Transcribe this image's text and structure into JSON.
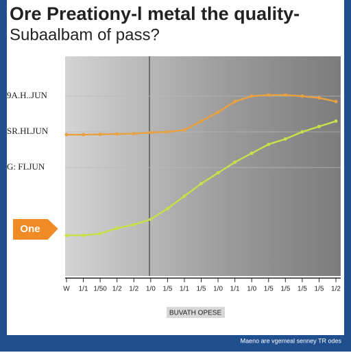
{
  "chart_data": {
    "type": "line",
    "title": "Ore Preationy-l metal the quality-",
    "subtitle": "Subaalbam of pass?",
    "annotation": "One",
    "x_label": "BUVATH OPESE",
    "footer": "Maeno are vgemeal senney TR odes",
    "categories": [
      "W",
      "1/1",
      "1/50",
      "1/2",
      "1/2",
      "1/0",
      "1/5",
      "1/1",
      "1/5",
      "1/0",
      "1/1",
      "1/0",
      "1/5",
      "1/5",
      "1/5",
      "1/5",
      "1/2"
    ],
    "series": [
      {
        "color": "#e8a040",
        "values": [
          3.92,
          3.92,
          3.93,
          3.94,
          3.95,
          3.98,
          4.0,
          4.05,
          4.3,
          4.55,
          4.85,
          5.0,
          5.03,
          5.03,
          5.0,
          4.95,
          4.85
        ]
      },
      {
        "color": "#c6e04a",
        "values": [
          1.1,
          1.1,
          1.15,
          1.3,
          1.4,
          1.55,
          1.85,
          2.2,
          2.55,
          2.85,
          3.15,
          3.4,
          3.65,
          3.8,
          4.0,
          4.15,
          4.3
        ]
      }
    ],
    "ylim": [
      0,
      6
    ],
    "yticks": [
      {
        "value": 5,
        "label": "9A.H..JUN"
      },
      {
        "value": 4,
        "label": "SR.HLJUN"
      },
      {
        "value": 3,
        "label": "G: FLJUN"
      }
    ],
    "grid": true
  }
}
